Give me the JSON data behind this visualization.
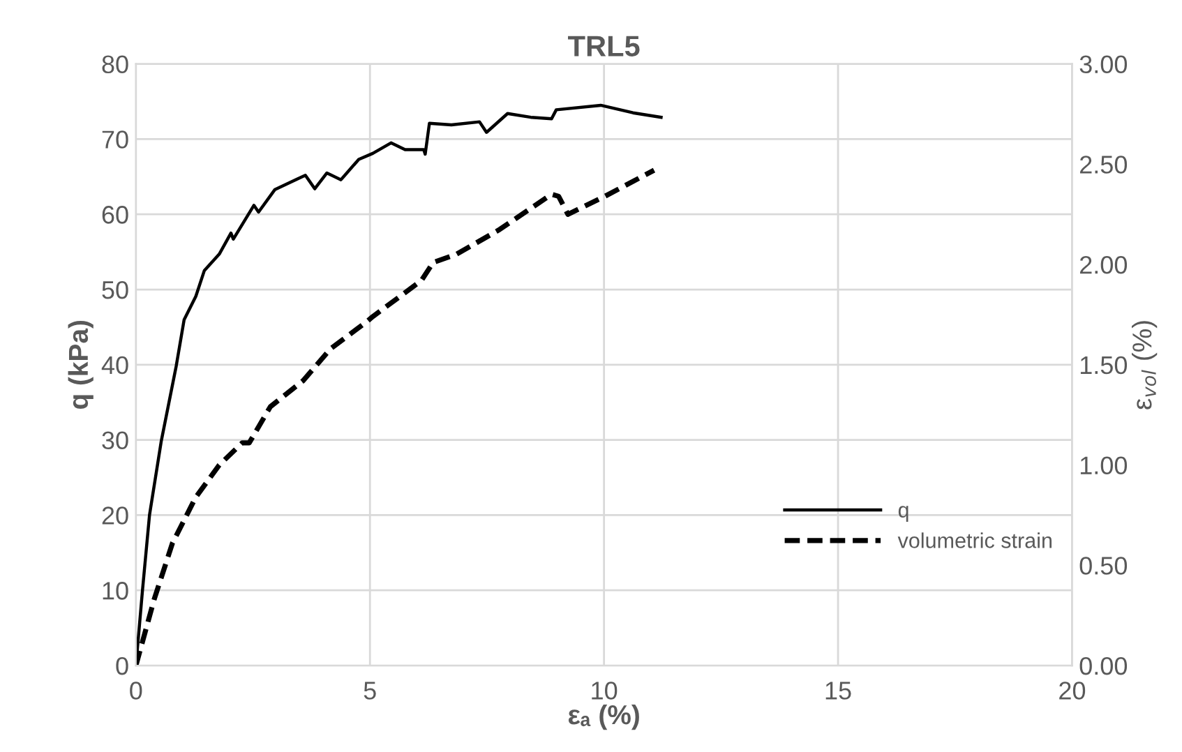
{
  "chart_data": {
    "type": "line",
    "title": "TRL5",
    "xlabel": "εₐ (%)",
    "ylabel": "q (kPa)",
    "y2label": "ε$_{vol}$ (%)",
    "series": [
      {
        "name": "q",
        "color": "#000000",
        "line_style": "solid",
        "x": [
          0,
          0.14,
          0.29,
          0.54,
          0.86,
          1.03,
          1.28,
          1.46,
          1.78,
          2.03,
          2.08,
          2.52,
          2.62,
          2.97,
          3.62,
          3.82,
          4.08,
          4.38,
          4.76,
          5.06,
          5.45,
          5.75,
          6.15,
          6.18,
          6.27,
          6.74,
          7.34,
          7.49,
          7.94,
          8.44,
          8.88,
          8.98,
          9.93,
          10.62,
          11.22
        ],
        "values": [
          0,
          10,
          20,
          29.8,
          39.8,
          46,
          49.1,
          52.5,
          54.7,
          57.5,
          56.7,
          61.2,
          60.3,
          63.3,
          65.2,
          63.4,
          65.5,
          64.6,
          67.3,
          68.1,
          69.5,
          68.6,
          68.6,
          68.0,
          72.1,
          71.9,
          72.3,
          70.9,
          73.4,
          72.9,
          72.7,
          73.9,
          74.5,
          73.5,
          72.9
        ]
      },
      {
        "name": "volumetric strain",
        "color": "#000000",
        "line_style": "dashed",
        "axis": "y2",
        "x": [
          0,
          0.39,
          0.78,
          1.28,
          1.78,
          2.27,
          2.42,
          2.87,
          3.57,
          4.16,
          4.96,
          5.06,
          6.1,
          6.35,
          6.84,
          7.74,
          8.88,
          9.03,
          9.23,
          10.02,
          11.07
        ],
        "values": [
          0,
          0.33,
          0.61,
          0.84,
          1.0,
          1.11,
          1.11,
          1.29,
          1.42,
          1.58,
          1.72,
          1.74,
          1.92,
          2.01,
          2.05,
          2.17,
          2.35,
          2.34,
          2.25,
          2.34,
          2.47
        ]
      }
    ],
    "xlim": [
      0,
      20
    ],
    "xticks": [
      0,
      5,
      10,
      15,
      20
    ],
    "ylim": [
      0,
      80
    ],
    "yticks": [
      0,
      10,
      20,
      30,
      40,
      50,
      60,
      70,
      80
    ],
    "y2lim": [
      0,
      3
    ],
    "y2ticks": [
      {
        "value": 0,
        "label": "0.00"
      },
      {
        "value": 0.5,
        "label": "0.50"
      },
      {
        "value": 1,
        "label": "1.00"
      },
      {
        "value": 1.5,
        "label": "1.50"
      },
      {
        "value": 2,
        "label": "2.00"
      },
      {
        "value": 2.5,
        "label": "2.50"
      },
      {
        "value": 3,
        "label": "3.00"
      }
    ],
    "grid": true,
    "legend": "right",
    "marker": "none"
  }
}
